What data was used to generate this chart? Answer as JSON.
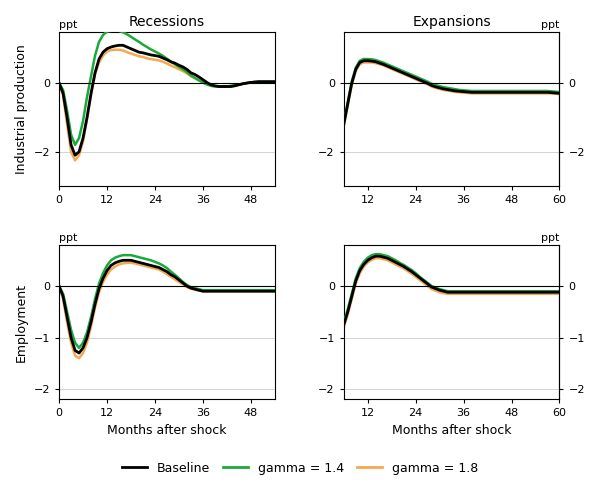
{
  "col_titles": [
    "Recessions",
    "Expansions"
  ],
  "row_labels": [
    "Industrial production",
    "Employment"
  ],
  "xlabel": "Months after shock",
  "xlim_left": [
    0,
    54
  ],
  "xlim_right": [
    6,
    60
  ],
  "ylim_ip": [
    -3.0,
    1.5
  ],
  "ylim_emp": [
    -2.2,
    0.8
  ],
  "xticks_left": [
    0,
    12,
    24,
    36,
    48
  ],
  "xticks_right": [
    12,
    24,
    36,
    48,
    60
  ],
  "yticks_ip": [
    -2,
    0
  ],
  "yticks_emp": [
    -2,
    -1,
    0
  ],
  "legend_labels": [
    "Baseline",
    "gamma = 1.4",
    "gamma = 1.8"
  ],
  "colors": {
    "baseline": "#000000",
    "gamma14": "#1aaa3a",
    "gamma18": "#f5a850"
  },
  "linewidths": {
    "baseline": 2.0,
    "gamma14": 1.8,
    "gamma18": 1.8
  },
  "x": [
    0,
    1,
    2,
    3,
    4,
    5,
    6,
    7,
    8,
    9,
    10,
    11,
    12,
    13,
    14,
    15,
    16,
    17,
    18,
    19,
    20,
    21,
    22,
    23,
    24,
    25,
    26,
    27,
    28,
    29,
    30,
    31,
    32,
    33,
    34,
    35,
    36,
    37,
    38,
    39,
    40,
    41,
    42,
    43,
    44,
    45,
    46,
    47,
    48,
    49,
    50,
    51,
    52,
    53,
    54,
    55,
    56,
    57,
    58,
    59,
    60
  ],
  "rec_ip_baseline": [
    0.0,
    -0.3,
    -1.0,
    -1.8,
    -2.1,
    -2.0,
    -1.6,
    -1.0,
    -0.3,
    0.3,
    0.7,
    0.9,
    1.0,
    1.05,
    1.08,
    1.1,
    1.1,
    1.05,
    1.0,
    0.95,
    0.9,
    0.88,
    0.85,
    0.82,
    0.8,
    0.78,
    0.73,
    0.68,
    0.62,
    0.58,
    0.52,
    0.47,
    0.4,
    0.3,
    0.25,
    0.18,
    0.1,
    0.02,
    -0.05,
    -0.08,
    -0.1,
    -0.1,
    -0.1,
    -0.1,
    -0.08,
    -0.05,
    -0.02,
    0.0,
    0.02,
    0.03,
    0.04,
    0.04,
    0.04,
    0.04,
    0.04,
    0.04,
    0.04,
    0.04,
    0.04,
    0.04,
    0.04
  ],
  "rec_ip_gamma14": [
    0.0,
    -0.2,
    -0.8,
    -1.5,
    -1.8,
    -1.6,
    -1.1,
    -0.4,
    0.2,
    0.8,
    1.2,
    1.4,
    1.5,
    1.52,
    1.53,
    1.52,
    1.48,
    1.42,
    1.35,
    1.27,
    1.2,
    1.12,
    1.05,
    0.98,
    0.92,
    0.86,
    0.79,
    0.71,
    0.62,
    0.55,
    0.47,
    0.4,
    0.32,
    0.22,
    0.15,
    0.08,
    0.02,
    -0.04,
    -0.08,
    -0.1,
    -0.1,
    -0.1,
    -0.1,
    -0.08,
    -0.06,
    -0.04,
    -0.02,
    0.0,
    0.02,
    0.03,
    0.04,
    0.04,
    0.04,
    0.04,
    0.04,
    0.04,
    0.04,
    0.04,
    0.04,
    0.04,
    0.04
  ],
  "rec_ip_gamma18": [
    0.0,
    -0.35,
    -1.2,
    -2.0,
    -2.25,
    -2.1,
    -1.7,
    -1.05,
    -0.35,
    0.25,
    0.6,
    0.8,
    0.92,
    0.96,
    0.97,
    0.97,
    0.95,
    0.9,
    0.86,
    0.82,
    0.78,
    0.76,
    0.72,
    0.7,
    0.68,
    0.66,
    0.62,
    0.57,
    0.51,
    0.46,
    0.4,
    0.35,
    0.28,
    0.2,
    0.14,
    0.08,
    0.02,
    -0.03,
    -0.06,
    -0.08,
    -0.1,
    -0.1,
    -0.1,
    -0.1,
    -0.08,
    -0.05,
    -0.02,
    0.0,
    0.02,
    0.03,
    0.04,
    0.04,
    0.04,
    0.04,
    0.04,
    0.04,
    0.04,
    0.04,
    0.04,
    0.04,
    0.04
  ],
  "exp_ip_baseline": [
    0.0,
    -0.8,
    -1.4,
    -1.7,
    -1.8,
    -1.6,
    -1.2,
    -0.6,
    0.0,
    0.4,
    0.6,
    0.65,
    0.65,
    0.64,
    0.62,
    0.58,
    0.54,
    0.49,
    0.44,
    0.39,
    0.34,
    0.29,
    0.24,
    0.19,
    0.14,
    0.09,
    0.04,
    -0.01,
    -0.07,
    -0.11,
    -0.14,
    -0.17,
    -0.19,
    -0.21,
    -0.23,
    -0.24,
    -0.25,
    -0.26,
    -0.27,
    -0.27,
    -0.27,
    -0.27,
    -0.27,
    -0.27,
    -0.27,
    -0.27,
    -0.27,
    -0.27,
    -0.27,
    -0.27,
    -0.27,
    -0.27,
    -0.27,
    -0.27,
    -0.27,
    -0.27,
    -0.27,
    -0.27,
    -0.28,
    -0.29,
    -0.3
  ],
  "exp_ip_gamma14": [
    0.0,
    -0.75,
    -1.35,
    -1.65,
    -1.75,
    -1.58,
    -1.15,
    -0.55,
    0.05,
    0.45,
    0.65,
    0.7,
    0.7,
    0.69,
    0.67,
    0.63,
    0.59,
    0.54,
    0.49,
    0.44,
    0.39,
    0.34,
    0.29,
    0.24,
    0.19,
    0.14,
    0.09,
    0.04,
    -0.02,
    -0.06,
    -0.09,
    -0.12,
    -0.14,
    -0.16,
    -0.18,
    -0.2,
    -0.21,
    -0.22,
    -0.23,
    -0.23,
    -0.23,
    -0.23,
    -0.23,
    -0.23,
    -0.23,
    -0.23,
    -0.23,
    -0.23,
    -0.23,
    -0.23,
    -0.23,
    -0.23,
    -0.23,
    -0.23,
    -0.23,
    -0.23,
    -0.23,
    -0.23,
    -0.24,
    -0.25,
    -0.26
  ],
  "exp_ip_gamma18": [
    0.0,
    -0.85,
    -1.45,
    -1.75,
    -1.82,
    -1.65,
    -1.25,
    -0.65,
    -0.05,
    0.35,
    0.55,
    0.6,
    0.6,
    0.6,
    0.58,
    0.55,
    0.51,
    0.46,
    0.41,
    0.36,
    0.31,
    0.26,
    0.21,
    0.16,
    0.11,
    0.06,
    0.01,
    -0.04,
    -0.1,
    -0.14,
    -0.17,
    -0.2,
    -0.22,
    -0.24,
    -0.26,
    -0.27,
    -0.28,
    -0.29,
    -0.3,
    -0.3,
    -0.3,
    -0.3,
    -0.3,
    -0.3,
    -0.3,
    -0.3,
    -0.3,
    -0.3,
    -0.3,
    -0.3,
    -0.3,
    -0.3,
    -0.3,
    -0.3,
    -0.3,
    -0.3,
    -0.3,
    -0.3,
    -0.3,
    -0.31,
    -0.32
  ],
  "rec_emp_baseline": [
    0.0,
    -0.2,
    -0.6,
    -1.0,
    -1.25,
    -1.3,
    -1.2,
    -1.0,
    -0.7,
    -0.35,
    -0.05,
    0.15,
    0.3,
    0.4,
    0.45,
    0.48,
    0.5,
    0.5,
    0.5,
    0.48,
    0.46,
    0.44,
    0.42,
    0.4,
    0.38,
    0.36,
    0.32,
    0.28,
    0.22,
    0.18,
    0.12,
    0.06,
    0.0,
    -0.04,
    -0.06,
    -0.08,
    -0.1,
    -0.1,
    -0.1,
    -0.1,
    -0.1,
    -0.1,
    -0.1,
    -0.1,
    -0.1,
    -0.1,
    -0.1,
    -0.1,
    -0.1,
    -0.1,
    -0.1,
    -0.1,
    -0.1,
    -0.1,
    -0.1,
    -0.1,
    -0.1,
    -0.1,
    -0.1,
    -0.1,
    -0.1
  ],
  "rec_emp_gamma14": [
    0.0,
    -0.15,
    -0.5,
    -0.85,
    -1.1,
    -1.2,
    -1.1,
    -0.9,
    -0.6,
    -0.25,
    0.05,
    0.25,
    0.4,
    0.5,
    0.55,
    0.58,
    0.6,
    0.6,
    0.6,
    0.58,
    0.56,
    0.54,
    0.52,
    0.5,
    0.47,
    0.44,
    0.4,
    0.35,
    0.28,
    0.22,
    0.15,
    0.08,
    0.02,
    -0.02,
    -0.04,
    -0.06,
    -0.08,
    -0.08,
    -0.08,
    -0.08,
    -0.08,
    -0.08,
    -0.08,
    -0.08,
    -0.08,
    -0.08,
    -0.08,
    -0.08,
    -0.08,
    -0.08,
    -0.08,
    -0.08,
    -0.08,
    -0.08,
    -0.08,
    -0.08,
    -0.08,
    -0.08,
    -0.08,
    -0.08,
    -0.08
  ],
  "rec_emp_gamma18": [
    0.0,
    -0.25,
    -0.7,
    -1.1,
    -1.35,
    -1.4,
    -1.3,
    -1.1,
    -0.78,
    -0.42,
    -0.12,
    0.08,
    0.22,
    0.32,
    0.38,
    0.42,
    0.44,
    0.45,
    0.45,
    0.44,
    0.42,
    0.4,
    0.38,
    0.36,
    0.34,
    0.32,
    0.28,
    0.23,
    0.18,
    0.13,
    0.08,
    0.03,
    -0.02,
    -0.05,
    -0.07,
    -0.09,
    -0.1,
    -0.1,
    -0.1,
    -0.1,
    -0.1,
    -0.1,
    -0.1,
    -0.1,
    -0.1,
    -0.1,
    -0.1,
    -0.1,
    -0.1,
    -0.1,
    -0.1,
    -0.1,
    -0.1,
    -0.1,
    -0.1,
    -0.1,
    -0.1,
    -0.1,
    -0.1,
    -0.1,
    -0.1
  ],
  "exp_emp_baseline": [
    0.0,
    -0.3,
    -0.6,
    -0.85,
    -0.95,
    -0.9,
    -0.75,
    -0.5,
    -0.2,
    0.1,
    0.3,
    0.42,
    0.5,
    0.55,
    0.58,
    0.58,
    0.56,
    0.54,
    0.5,
    0.46,
    0.42,
    0.38,
    0.33,
    0.28,
    0.22,
    0.16,
    0.1,
    0.04,
    -0.02,
    -0.05,
    -0.08,
    -0.1,
    -0.12,
    -0.12,
    -0.12,
    -0.12,
    -0.12,
    -0.12,
    -0.12,
    -0.12,
    -0.12,
    -0.12,
    -0.12,
    -0.12,
    -0.12,
    -0.12,
    -0.12,
    -0.12,
    -0.12,
    -0.12,
    -0.12,
    -0.12,
    -0.12,
    -0.12,
    -0.12,
    -0.12,
    -0.12,
    -0.12,
    -0.12,
    -0.12,
    -0.12
  ],
  "exp_emp_gamma14": [
    0.0,
    -0.25,
    -0.55,
    -0.8,
    -0.9,
    -0.85,
    -0.7,
    -0.45,
    -0.15,
    0.15,
    0.35,
    0.47,
    0.55,
    0.6,
    0.62,
    0.62,
    0.6,
    0.58,
    0.54,
    0.5,
    0.45,
    0.41,
    0.36,
    0.31,
    0.25,
    0.18,
    0.12,
    0.06,
    0.0,
    -0.03,
    -0.06,
    -0.08,
    -0.1,
    -0.1,
    -0.1,
    -0.1,
    -0.1,
    -0.1,
    -0.1,
    -0.1,
    -0.1,
    -0.1,
    -0.1,
    -0.1,
    -0.1,
    -0.1,
    -0.1,
    -0.1,
    -0.1,
    -0.1,
    -0.1,
    -0.1,
    -0.1,
    -0.1,
    -0.1,
    -0.1,
    -0.1,
    -0.1,
    -0.1,
    -0.1,
    -0.1
  ],
  "exp_emp_gamma18": [
    0.0,
    -0.35,
    -0.65,
    -0.9,
    -1.0,
    -0.95,
    -0.8,
    -0.55,
    -0.25,
    0.05,
    0.25,
    0.38,
    0.46,
    0.51,
    0.54,
    0.54,
    0.52,
    0.5,
    0.46,
    0.42,
    0.38,
    0.34,
    0.29,
    0.24,
    0.18,
    0.12,
    0.06,
    0.0,
    -0.06,
    -0.09,
    -0.12,
    -0.14,
    -0.15,
    -0.15,
    -0.15,
    -0.15,
    -0.15,
    -0.15,
    -0.15,
    -0.15,
    -0.15,
    -0.15,
    -0.15,
    -0.15,
    -0.15,
    -0.15,
    -0.15,
    -0.15,
    -0.15,
    -0.15,
    -0.15,
    -0.15,
    -0.15,
    -0.15,
    -0.15,
    -0.15,
    -0.15,
    -0.15,
    -0.15,
    -0.15,
    -0.15
  ]
}
